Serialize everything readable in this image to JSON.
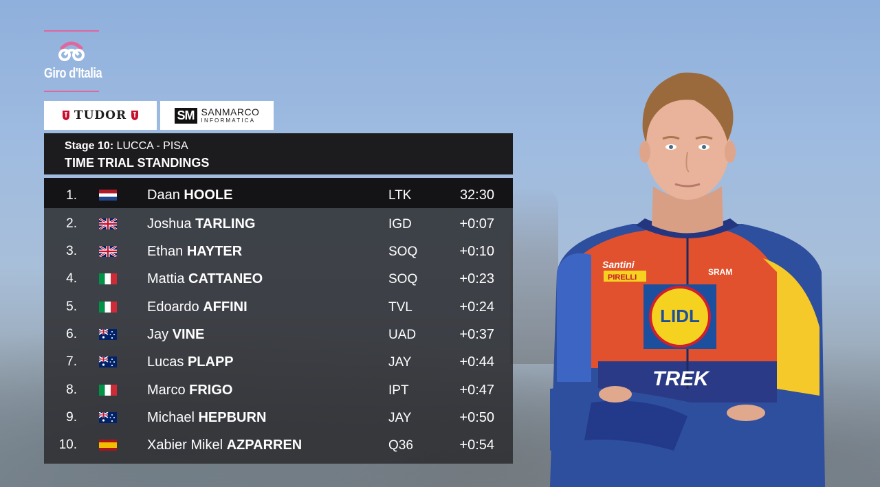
{
  "logo": {
    "text": "Giro d'Italia"
  },
  "sponsors": {
    "tudor": "TUDOR",
    "sanmarco_line1": "SANMARCO",
    "sanmarco_line2": "INFORMATICA",
    "sanmarco_mark": "SM"
  },
  "header": {
    "stage_label": "Stage 10:",
    "stage_route": "LUCCA - PISA",
    "title": "TIME TRIAL STANDINGS"
  },
  "standings": [
    {
      "rank": "1.",
      "flag": "nl",
      "first": "Daan",
      "last": "HOOLE",
      "team": "LTK",
      "time": "32:30"
    },
    {
      "rank": "2.",
      "flag": "gb",
      "first": "Joshua",
      "last": "TARLING",
      "team": "IGD",
      "time": "+0:07"
    },
    {
      "rank": "3.",
      "flag": "gb",
      "first": "Ethan",
      "last": "HAYTER",
      "team": "SOQ",
      "time": "+0:10"
    },
    {
      "rank": "4.",
      "flag": "it",
      "first": "Mattia",
      "last": "CATTANEO",
      "team": "SOQ",
      "time": "+0:23"
    },
    {
      "rank": "5.",
      "flag": "it",
      "first": "Edoardo",
      "last": "AFFINI",
      "team": "TVL",
      "time": "+0:24"
    },
    {
      "rank": "6.",
      "flag": "au",
      "first": "Jay",
      "last": "VINE",
      "team": "UAD",
      "time": "+0:37"
    },
    {
      "rank": "7.",
      "flag": "au",
      "first": "Lucas",
      "last": "PLAPP",
      "team": "JAY",
      "time": "+0:44"
    },
    {
      "rank": "8.",
      "flag": "it",
      "first": "Marco",
      "last": "FRIGO",
      "team": "IPT",
      "time": "+0:47"
    },
    {
      "rank": "9.",
      "flag": "au",
      "first": "Michael",
      "last": "HEPBURN",
      "team": "JAY",
      "time": "+0:50"
    },
    {
      "rank": "10.",
      "flag": "es",
      "first": "Xabier Mikel",
      "last": "AZPARREN",
      "team": "Q36",
      "time": "+0:54"
    }
  ],
  "jersey": {
    "brand_main": "TREK",
    "sponsor_logo": "LIDL",
    "sponsor_1": "Santini",
    "sponsor_2": "PIRELLI",
    "sponsor_3": "SRAM"
  },
  "colors": {
    "logo_pink": "#e0669e",
    "header_bg": "#1c1c1e",
    "table_bg": "#2c2c30",
    "jersey_orange": "#e2512d",
    "jersey_blue": "#2e4e9e",
    "jersey_yellow": "#f4c929"
  }
}
